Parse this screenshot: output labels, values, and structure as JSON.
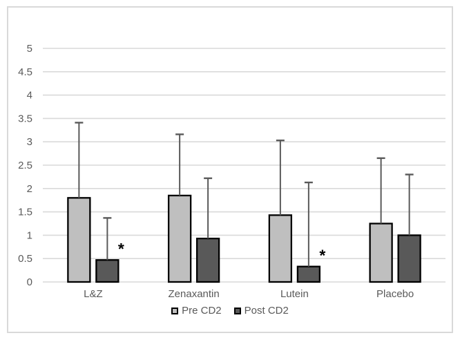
{
  "chart_data": {
    "type": "bar",
    "title": "",
    "categories": [
      "L&Z",
      "Zenaxantin",
      "Lutein",
      "Placebo"
    ],
    "series": [
      {
        "name": "Pre CD2",
        "color": "#BFBFBF",
        "values": [
          1.8,
          1.85,
          1.43,
          1.25
        ],
        "error_up": [
          1.61,
          1.31,
          1.6,
          1.4
        ]
      },
      {
        "name": "Post CD2",
        "color": "#595959",
        "values": [
          0.47,
          0.93,
          0.33,
          1.0
        ],
        "error_up": [
          0.9,
          1.29,
          1.8,
          1.3
        ]
      }
    ],
    "annotations": [
      {
        "text": "*",
        "category_index": 0,
        "series_index": 1
      },
      {
        "text": "*",
        "category_index": 2,
        "series_index": 1
      }
    ],
    "yaxis": {
      "min": 0,
      "max": 5,
      "step": 0.5,
      "tick_labels": [
        "0",
        "0.5",
        "1",
        "1.5",
        "2",
        "2.5",
        "3",
        "3.5",
        "4",
        "4.5",
        "5"
      ]
    },
    "grid": true,
    "legend_position": "bottom",
    "colors": {
      "gridline": "#D9D9D9",
      "axis_text": "#595959",
      "bar_border": "#000000",
      "error_bar": "#595959",
      "frame_border": "#D9D9D9",
      "background": "#FFFFFF",
      "annotation": "#000000"
    }
  }
}
